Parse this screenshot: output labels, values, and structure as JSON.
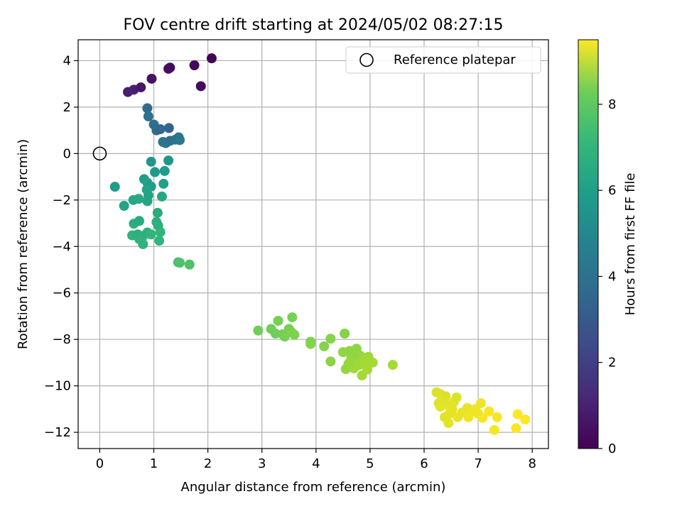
{
  "chart_data": {
    "type": "scatter",
    "title": "FOV centre drift starting at 2024/05/02 08:27:15",
    "xlabel": "Angular distance from reference (arcmin)",
    "ylabel": "Rotation from reference (arcmin)",
    "xlim": [
      -0.4,
      8.3
    ],
    "ylim": [
      -12.7,
      4.9
    ],
    "xticks": [
      0,
      1,
      2,
      3,
      4,
      5,
      6,
      7,
      8
    ],
    "yticks": [
      -12,
      -10,
      -8,
      -6,
      -4,
      -2,
      0,
      2,
      4
    ],
    "xtick_labels": [
      "0",
      "1",
      "2",
      "3",
      "4",
      "5",
      "6",
      "7",
      "8"
    ],
    "ytick_labels": [
      "−12",
      "−10",
      "−8",
      "−6",
      "−4",
      "−2",
      "0",
      "2",
      "4"
    ],
    "grid": true,
    "legend": {
      "position": "top-right",
      "entries": [
        "Reference platepar"
      ]
    },
    "reference_point": {
      "x": 0,
      "y": 0,
      "marker": "open-circle",
      "label": "Reference platepar"
    },
    "colorbar": {
      "label": "Hours from first FF file",
      "colormap": "viridis",
      "range": [
        0,
        9.5
      ],
      "ticks": [
        0,
        2,
        4,
        6,
        8
      ],
      "tick_labels": [
        "0",
        "2",
        "4",
        "6",
        "8"
      ]
    },
    "points": [
      {
        "x": 0.52,
        "y": 2.65,
        "c": 0.8
      },
      {
        "x": 0.63,
        "y": 2.75,
        "c": 0.9
      },
      {
        "x": 0.76,
        "y": 2.85,
        "c": 0.6
      },
      {
        "x": 0.96,
        "y": 3.22,
        "c": 0.5
      },
      {
        "x": 1.27,
        "y": 3.65,
        "c": 0.4
      },
      {
        "x": 1.3,
        "y": 3.7,
        "c": 0.3
      },
      {
        "x": 1.75,
        "y": 3.8,
        "c": 0.2
      },
      {
        "x": 2.07,
        "y": 4.1,
        "c": 0.1
      },
      {
        "x": 1.87,
        "y": 2.9,
        "c": 0.3
      },
      {
        "x": 0.88,
        "y": 1.95,
        "c": 3.3
      },
      {
        "x": 0.9,
        "y": 1.6,
        "c": 3.5
      },
      {
        "x": 1.0,
        "y": 1.25,
        "c": 3.4
      },
      {
        "x": 1.05,
        "y": 1.0,
        "c": 3.3
      },
      {
        "x": 1.12,
        "y": 1.05,
        "c": 3.2
      },
      {
        "x": 1.28,
        "y": 1.1,
        "c": 3.1
      },
      {
        "x": 1.17,
        "y": 0.5,
        "c": 3.6
      },
      {
        "x": 1.22,
        "y": 0.45,
        "c": 3.7
      },
      {
        "x": 1.3,
        "y": 0.55,
        "c": 3.5
      },
      {
        "x": 1.4,
        "y": 0.6,
        "c": 3.6
      },
      {
        "x": 1.46,
        "y": 0.7,
        "c": 3.7
      },
      {
        "x": 1.48,
        "y": 0.58,
        "c": 3.8
      },
      {
        "x": 0.95,
        "y": -0.35,
        "c": 5.0
      },
      {
        "x": 1.27,
        "y": -0.3,
        "c": 5.0
      },
      {
        "x": 1.02,
        "y": -0.8,
        "c": 5.1
      },
      {
        "x": 1.2,
        "y": -0.75,
        "c": 5.2
      },
      {
        "x": 0.28,
        "y": -1.43,
        "c": 5.2
      },
      {
        "x": 0.82,
        "y": -1.1,
        "c": 5.3
      },
      {
        "x": 0.88,
        "y": -1.25,
        "c": 5.4
      },
      {
        "x": 0.95,
        "y": -1.42,
        "c": 5.3
      },
      {
        "x": 0.87,
        "y": -1.55,
        "c": 5.5
      },
      {
        "x": 1.18,
        "y": -1.3,
        "c": 5.4
      },
      {
        "x": 0.45,
        "y": -2.25,
        "c": 5.5
      },
      {
        "x": 0.62,
        "y": -2.0,
        "c": 5.6
      },
      {
        "x": 0.72,
        "y": -1.95,
        "c": 5.7
      },
      {
        "x": 0.88,
        "y": -2.05,
        "c": 5.6
      },
      {
        "x": 0.9,
        "y": -1.8,
        "c": 5.5
      },
      {
        "x": 1.15,
        "y": -1.85,
        "c": 5.6
      },
      {
        "x": 1.07,
        "y": -2.55,
        "c": 5.8
      },
      {
        "x": 0.63,
        "y": -3.02,
        "c": 5.9
      },
      {
        "x": 0.73,
        "y": -2.9,
        "c": 5.8
      },
      {
        "x": 1.05,
        "y": -2.95,
        "c": 5.9
      },
      {
        "x": 1.08,
        "y": -3.1,
        "c": 6.0
      },
      {
        "x": 0.6,
        "y": -3.52,
        "c": 6.1
      },
      {
        "x": 0.7,
        "y": -3.48,
        "c": 6.0
      },
      {
        "x": 0.8,
        "y": -3.55,
        "c": 6.1
      },
      {
        "x": 0.88,
        "y": -3.4,
        "c": 6.0
      },
      {
        "x": 0.95,
        "y": -3.48,
        "c": 6.2
      },
      {
        "x": 0.73,
        "y": -3.68,
        "c": 6.1
      },
      {
        "x": 0.8,
        "y": -3.9,
        "c": 6.1
      },
      {
        "x": 1.12,
        "y": -3.38,
        "c": 6.2
      },
      {
        "x": 1.1,
        "y": -3.75,
        "c": 6.2
      },
      {
        "x": 1.45,
        "y": -4.68,
        "c": 6.7
      },
      {
        "x": 1.48,
        "y": -4.7,
        "c": 6.8
      },
      {
        "x": 1.66,
        "y": -4.78,
        "c": 6.8
      },
      {
        "x": 2.93,
        "y": -7.62,
        "c": 7.4
      },
      {
        "x": 3.17,
        "y": -7.55,
        "c": 7.4
      },
      {
        "x": 3.25,
        "y": -7.75,
        "c": 7.4
      },
      {
        "x": 3.3,
        "y": -7.2,
        "c": 7.5
      },
      {
        "x": 3.38,
        "y": -7.78,
        "c": 7.5
      },
      {
        "x": 3.42,
        "y": -7.88,
        "c": 7.5
      },
      {
        "x": 3.5,
        "y": -7.55,
        "c": 7.5
      },
      {
        "x": 3.55,
        "y": -7.7,
        "c": 7.6
      },
      {
        "x": 3.56,
        "y": -7.05,
        "c": 7.5
      },
      {
        "x": 3.6,
        "y": -7.8,
        "c": 7.6
      },
      {
        "x": 3.9,
        "y": -8.1,
        "c": 7.6
      },
      {
        "x": 3.9,
        "y": -8.2,
        "c": 7.7
      },
      {
        "x": 4.15,
        "y": -8.3,
        "c": 7.7
      },
      {
        "x": 4.27,
        "y": -7.97,
        "c": 7.7
      },
      {
        "x": 4.27,
        "y": -8.95,
        "c": 7.8
      },
      {
        "x": 4.53,
        "y": -7.75,
        "c": 7.7
      },
      {
        "x": 4.5,
        "y": -8.55,
        "c": 7.9
      },
      {
        "x": 4.55,
        "y": -9.28,
        "c": 8.0
      },
      {
        "x": 4.62,
        "y": -8.5,
        "c": 7.9
      },
      {
        "x": 4.65,
        "y": -8.8,
        "c": 8.0
      },
      {
        "x": 4.68,
        "y": -9.1,
        "c": 8.0
      },
      {
        "x": 4.7,
        "y": -9.25,
        "c": 8.1
      },
      {
        "x": 4.75,
        "y": -8.4,
        "c": 7.9
      },
      {
        "x": 4.78,
        "y": -8.95,
        "c": 8.1
      },
      {
        "x": 4.8,
        "y": -9.1,
        "c": 8.1
      },
      {
        "x": 4.82,
        "y": -8.7,
        "c": 8.0
      },
      {
        "x": 4.85,
        "y": -9.55,
        "c": 8.2
      },
      {
        "x": 4.88,
        "y": -8.85,
        "c": 8.1
      },
      {
        "x": 4.9,
        "y": -9.05,
        "c": 8.2
      },
      {
        "x": 4.95,
        "y": -9.3,
        "c": 8.2
      },
      {
        "x": 4.97,
        "y": -8.75,
        "c": 8.1
      },
      {
        "x": 5.05,
        "y": -9.0,
        "c": 8.2
      },
      {
        "x": 5.42,
        "y": -9.1,
        "c": 8.2
      },
      {
        "x": 4.6,
        "y": -9.05,
        "c": 8.0
      },
      {
        "x": 4.72,
        "y": -8.65,
        "c": 7.9
      },
      {
        "x": 6.23,
        "y": -10.28,
        "c": 9.0
      },
      {
        "x": 6.27,
        "y": -10.75,
        "c": 9.0
      },
      {
        "x": 6.3,
        "y": -10.35,
        "c": 9.0
      },
      {
        "x": 6.35,
        "y": -10.6,
        "c": 9.1
      },
      {
        "x": 6.38,
        "y": -11.35,
        "c": 9.1
      },
      {
        "x": 6.4,
        "y": -10.45,
        "c": 9.0
      },
      {
        "x": 6.45,
        "y": -10.85,
        "c": 9.1
      },
      {
        "x": 6.47,
        "y": -11.2,
        "c": 9.1
      },
      {
        "x": 6.45,
        "y": -11.6,
        "c": 9.1
      },
      {
        "x": 6.55,
        "y": -10.7,
        "c": 9.1
      },
      {
        "x": 6.6,
        "y": -10.5,
        "c": 9.0
      },
      {
        "x": 6.62,
        "y": -11.35,
        "c": 9.2
      },
      {
        "x": 6.7,
        "y": -11.15,
        "c": 9.2
      },
      {
        "x": 6.8,
        "y": -10.95,
        "c": 9.2
      },
      {
        "x": 6.82,
        "y": -11.35,
        "c": 9.3
      },
      {
        "x": 6.9,
        "y": -11.1,
        "c": 9.3
      },
      {
        "x": 6.95,
        "y": -11.0,
        "c": 9.3
      },
      {
        "x": 7.0,
        "y": -11.2,
        "c": 9.3
      },
      {
        "x": 7.05,
        "y": -10.75,
        "c": 9.3
      },
      {
        "x": 7.08,
        "y": -11.38,
        "c": 9.4
      },
      {
        "x": 7.2,
        "y": -11.1,
        "c": 9.4
      },
      {
        "x": 7.3,
        "y": -11.9,
        "c": 9.4
      },
      {
        "x": 7.35,
        "y": -11.35,
        "c": 9.4
      },
      {
        "x": 7.7,
        "y": -11.82,
        "c": 9.5
      },
      {
        "x": 7.73,
        "y": -11.22,
        "c": 9.5
      },
      {
        "x": 7.87,
        "y": -11.45,
        "c": 9.5
      },
      {
        "x": 6.3,
        "y": -10.9,
        "c": 9.1
      },
      {
        "x": 6.52,
        "y": -11.0,
        "c": 9.1
      }
    ]
  }
}
